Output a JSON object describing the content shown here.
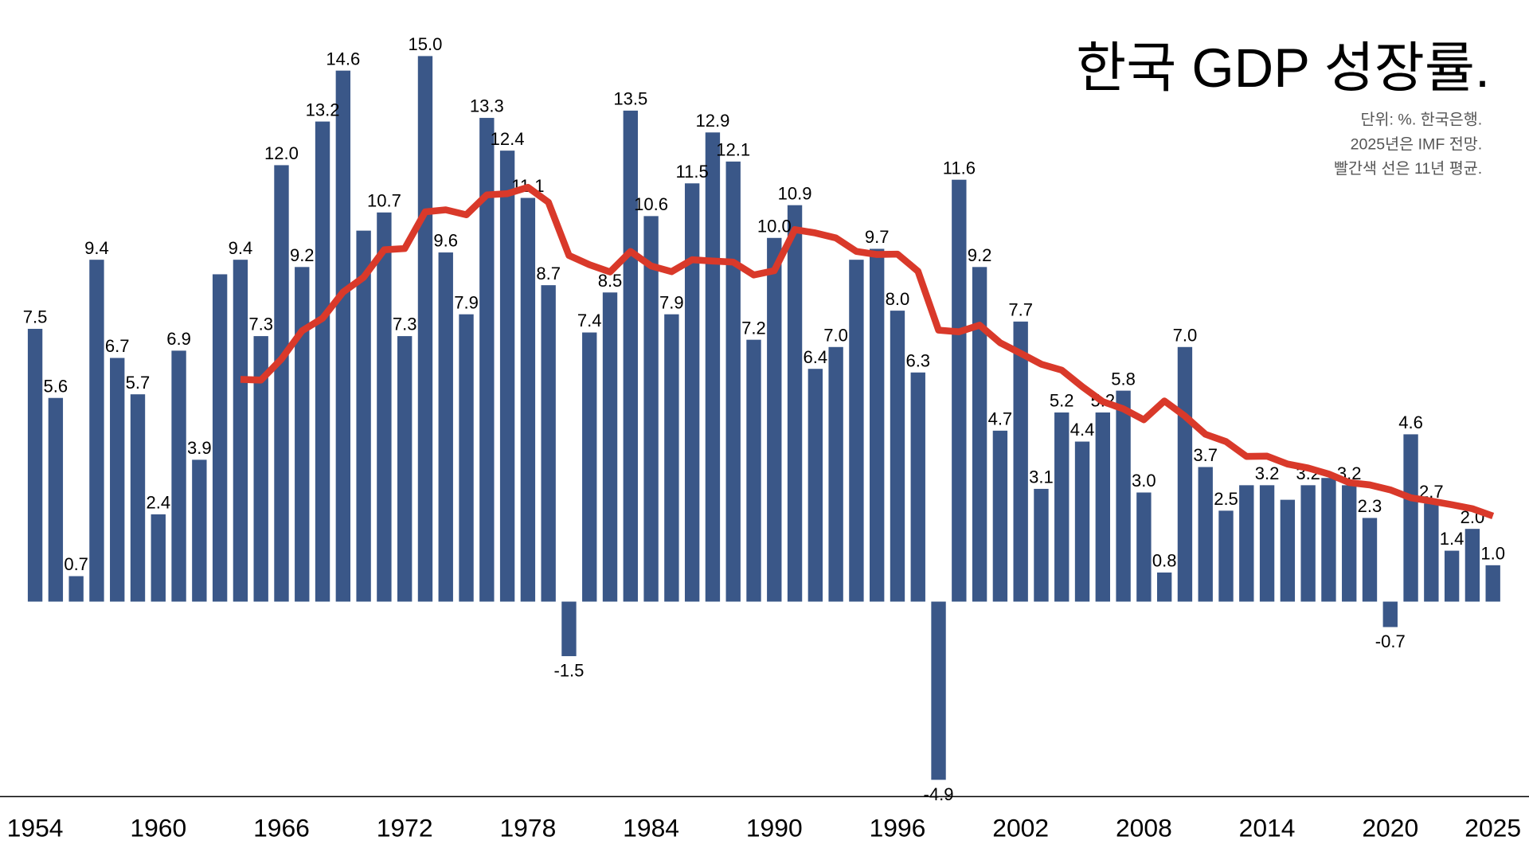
{
  "chart_data": {
    "type": "bar",
    "title": "한국 GDP 성장률.",
    "notes": [
      "단위: %. 한국은행.",
      "2025년은 IMF 전망.",
      "빨간색 선은 11년 평균."
    ],
    "xlabel": "",
    "ylabel": "",
    "ylim": [
      -5.3,
      15.3
    ],
    "grid": false,
    "colors": {
      "bar": "#3a5788",
      "line": "#d9392a"
    },
    "x": [
      1954,
      1955,
      1956,
      1957,
      1958,
      1959,
      1960,
      1961,
      1962,
      1963,
      1964,
      1965,
      1966,
      1967,
      1968,
      1969,
      1970,
      1971,
      1972,
      1973,
      1974,
      1975,
      1976,
      1977,
      1978,
      1979,
      1980,
      1981,
      1982,
      1983,
      1984,
      1985,
      1986,
      1987,
      1988,
      1989,
      1990,
      1991,
      1992,
      1993,
      1994,
      1995,
      1996,
      1997,
      1998,
      1999,
      2000,
      2001,
      2002,
      2003,
      2004,
      2005,
      2006,
      2007,
      2008,
      2009,
      2010,
      2011,
      2012,
      2013,
      2014,
      2015,
      2016,
      2017,
      2018,
      2019,
      2020,
      2021,
      2022,
      2023,
      2024,
      2025
    ],
    "series": [
      {
        "name": "GDP 성장률",
        "type": "bar",
        "values": [
          7.5,
          5.6,
          0.7,
          9.4,
          6.7,
          5.7,
          2.4,
          6.9,
          3.9,
          9.0,
          9.4,
          7.3,
          12.0,
          9.2,
          13.2,
          14.6,
          10.2,
          10.7,
          7.3,
          15.0,
          9.6,
          7.9,
          13.3,
          12.4,
          11.1,
          8.7,
          -1.5,
          7.4,
          8.5,
          13.5,
          10.6,
          7.9,
          11.5,
          12.9,
          12.1,
          7.2,
          10.0,
          10.9,
          6.4,
          7.0,
          9.4,
          9.7,
          8.0,
          6.3,
          -4.9,
          11.6,
          9.2,
          4.7,
          7.7,
          3.1,
          5.2,
          4.4,
          5.2,
          5.8,
          3.0,
          0.8,
          7.0,
          3.7,
          2.5,
          3.2,
          3.2,
          2.8,
          3.2,
          3.4,
          3.2,
          2.3,
          -0.7,
          4.6,
          2.7,
          1.4,
          2.0,
          1.0
        ],
        "labels": [
          "7.5",
          "5.6",
          "0.7",
          "9.4",
          "6.7",
          "5.7",
          "2.4",
          "6.9",
          "3.9",
          null,
          "9.4",
          "7.3",
          "12.0",
          "9.2",
          "13.2",
          "14.6",
          null,
          "10.7",
          "7.3",
          "15.0",
          "9.6",
          "7.9",
          "13.3",
          "12.4",
          "11.1",
          "8.7",
          "-1.5",
          "7.4",
          "8.5",
          "13.5",
          "10.6",
          "7.9",
          "11.5",
          "12.9",
          "12.1",
          "7.2",
          "10.0",
          "10.9",
          "6.4",
          "7.0",
          null,
          "9.7",
          "8.0",
          "6.3",
          "-4.9",
          "11.6",
          "9.2",
          "4.7",
          "7.7",
          "3.1",
          "5.2",
          "4.4",
          "5.2",
          "5.8",
          "3.0",
          "0.8",
          "7.0",
          "3.7",
          "2.5",
          null,
          "3.2",
          null,
          "3.2",
          null,
          "3.2",
          "2.3",
          "-0.7",
          "4.6",
          "2.7",
          "1.4",
          "2.0",
          "1.0"
        ]
      },
      {
        "name": "11년 평균",
        "type": "line",
        "window": 11
      }
    ],
    "xticks": [
      "1954",
      "1960",
      "1966",
      "1972",
      "1978",
      "1984",
      "1990",
      "1996",
      "2002",
      "2008",
      "2014",
      "2020",
      "2025"
    ]
  }
}
